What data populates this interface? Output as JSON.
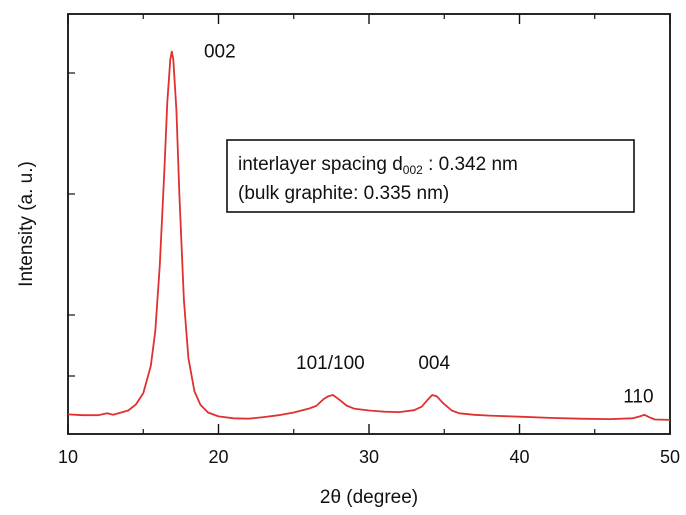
{
  "chart_data": {
    "type": "line",
    "title": "",
    "xlabel": "2θ (degree)",
    "ylabel": "Intensity (a. u.)",
    "xlim": [
      10,
      50
    ],
    "ylim": [
      0,
      100
    ],
    "x_ticks": [
      "10",
      "20",
      "30",
      "40",
      "50"
    ],
    "y_ticks_labeled": false,
    "grid": false,
    "line_color": "#e03030",
    "peaks": [
      {
        "label": "002",
        "x": 16.9,
        "y": 97
      },
      {
        "label": "101/100",
        "x": 27.5,
        "y": 8.5
      },
      {
        "label": "004",
        "x": 34.2,
        "y": 8.5
      },
      {
        "label": "110",
        "x": 48.3,
        "y": 3.5
      }
    ],
    "annotation": {
      "line1_prefix": "interlayer spacing d",
      "line1_subscript": "002",
      "line1_suffix": " : 0.342 nm",
      "line2": "(bulk graphite: 0.335 nm)"
    },
    "series": [
      {
        "x": [
          10,
          11,
          12,
          12.6,
          13,
          14,
          14.5,
          15,
          15.5,
          15.8,
          16.1,
          16.4,
          16.6,
          16.8,
          16.9,
          17.0,
          17.2,
          17.4,
          17.7,
          18.0,
          18.4,
          18.8,
          19.3,
          20,
          21,
          22,
          23,
          24,
          25,
          26,
          26.5,
          27.0,
          27.3,
          27.6,
          28.0,
          28.5,
          29,
          30,
          31,
          32,
          33,
          33.5,
          33.9,
          34.2,
          34.5,
          34.9,
          35.5,
          36,
          37,
          38,
          40,
          42,
          44,
          46,
          47.5,
          48.0,
          48.3,
          48.6,
          49,
          50
        ],
        "y": [
          3.5,
          3.3,
          3.3,
          3.8,
          3.4,
          4.5,
          6,
          9,
          16,
          25,
          42,
          66,
          84,
          95,
          97,
          95,
          82,
          60,
          33,
          18,
          9.5,
          6,
          4,
          3,
          2.5,
          2.4,
          2.8,
          3.3,
          4,
          5,
          5.7,
          7.5,
          8.2,
          8.5,
          7.4,
          5.8,
          5,
          4.5,
          4.2,
          4.1,
          4.6,
          5.5,
          7.3,
          8.5,
          8.2,
          6.5,
          4.5,
          3.8,
          3.4,
          3.2,
          2.9,
          2.6,
          2.4,
          2.3,
          2.5,
          3,
          3.4,
          2.8,
          2.2,
          2.1
        ]
      }
    ]
  }
}
